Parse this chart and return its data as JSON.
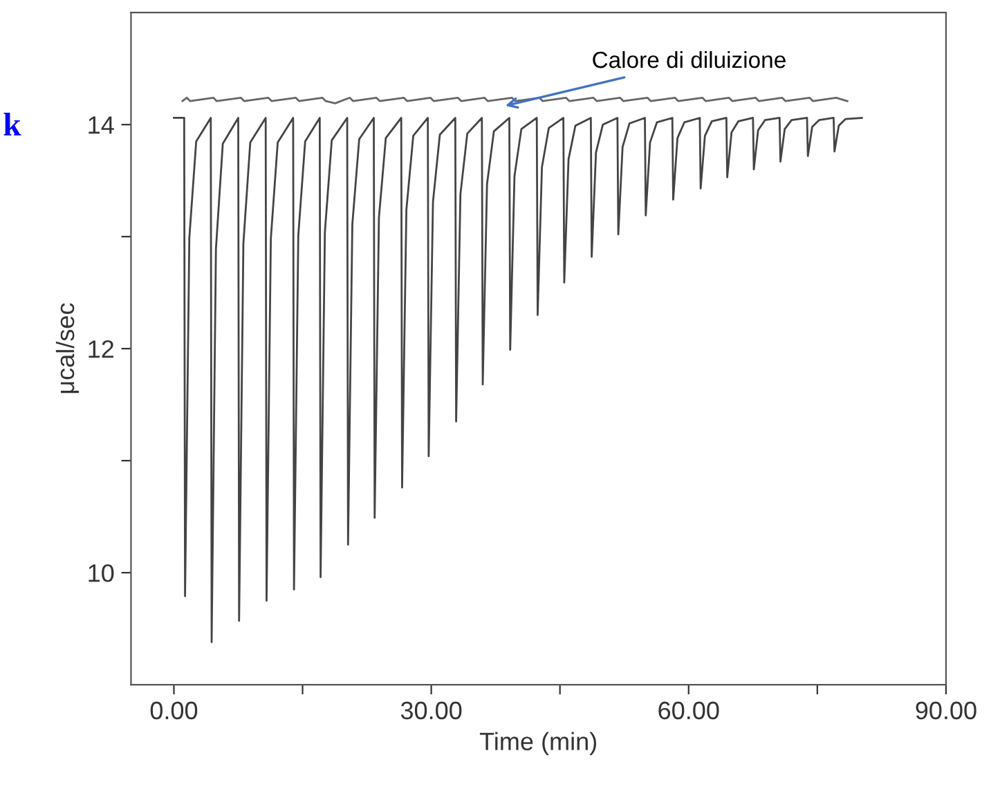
{
  "chart_data": {
    "type": "line",
    "xlabel": "Time (min)",
    "ylabel": "μcal/sec",
    "xlim": [
      -5,
      90
    ],
    "ylim": [
      9,
      15
    ],
    "xticks": [
      {
        "value": 0,
        "label": "0.00"
      },
      {
        "value": 15,
        "label": null
      },
      {
        "value": 30,
        "label": "30.00"
      },
      {
        "value": 45,
        "label": null
      },
      {
        "value": 60,
        "label": "60.00"
      },
      {
        "value": 75,
        "label": null
      },
      {
        "value": 90,
        "label": "90.00"
      }
    ],
    "yticks": [
      10,
      {
        "value": 11,
        "label": null
      },
      12,
      {
        "value": 13,
        "label": null
      },
      14
    ],
    "grid": false,
    "legend": false,
    "marker": "none",
    "line_style": "solid",
    "annotations": [
      "k",
      {
        "text": "Calore di diluizione",
        "x": 38.2,
        "y": 14.16
      }
    ],
    "series": [
      {
        "color": "#666666",
        "x": [
          1.0,
          1.5,
          1.9,
          4.6,
          5.0,
          7.8,
          8.2,
          11.0,
          11.4,
          14.2,
          14.6,
          17.3,
          17.7,
          18.8,
          20.5,
          20.9,
          23.6,
          24.0,
          26.8,
          27.2,
          29.9,
          30.3,
          33.1,
          33.5,
          36.2,
          36.6,
          39.4,
          39.8,
          42.6,
          43.0,
          45.7,
          46.1,
          48.9,
          49.3,
          52.0,
          52.4,
          55.2,
          55.6,
          58.4,
          58.8,
          61.6,
          62.0,
          64.7,
          65.1,
          67.8,
          68.2,
          70.9,
          71.3,
          74.1,
          74.5,
          77.2,
          78.5
        ],
        "values": [
          14.21,
          14.24,
          14.21,
          14.24,
          14.21,
          14.24,
          14.21,
          14.24,
          14.21,
          14.24,
          14.21,
          14.24,
          14.21,
          14.19,
          14.24,
          14.21,
          14.24,
          14.21,
          14.24,
          14.21,
          14.24,
          14.21,
          14.24,
          14.21,
          14.24,
          14.21,
          14.24,
          14.21,
          14.24,
          14.21,
          14.24,
          14.21,
          14.24,
          14.21,
          14.24,
          14.21,
          14.24,
          14.21,
          14.24,
          14.21,
          14.24,
          14.21,
          14.24,
          14.21,
          14.24,
          14.21,
          14.24,
          14.21,
          14.24,
          14.21,
          14.24,
          14.21
        ]
      },
      {
        "color": "#444444",
        "x": [
          0.0,
          1.2,
          1.3,
          1.8,
          2.6,
          4.3,
          4.4,
          4.9,
          5.7,
          7.5,
          7.6,
          8.1,
          8.9,
          10.7,
          10.8,
          11.3,
          12.1,
          13.9,
          14.0,
          14.5,
          15.3,
          17.0,
          17.1,
          17.6,
          18.4,
          20.2,
          20.3,
          20.8,
          21.6,
          23.3,
          23.4,
          23.9,
          24.7,
          26.5,
          26.6,
          27.1,
          27.9,
          29.6,
          29.7,
          30.2,
          31.0,
          32.8,
          32.9,
          33.4,
          34.2,
          35.9,
          36.0,
          36.5,
          37.3,
          39.1,
          39.2,
          39.7,
          40.5,
          42.3,
          42.4,
          42.9,
          43.7,
          45.4,
          45.5,
          46.0,
          46.8,
          48.6,
          48.7,
          49.2,
          50.0,
          51.7,
          51.8,
          52.3,
          53.1,
          54.9,
          55.0,
          55.5,
          56.3,
          58.1,
          58.2,
          58.7,
          59.5,
          61.3,
          61.4,
          61.9,
          62.7,
          64.4,
          64.5,
          65.0,
          65.8,
          67.5,
          67.6,
          68.1,
          68.9,
          70.6,
          70.7,
          71.2,
          72.0,
          73.8,
          73.9,
          74.4,
          75.2,
          76.9,
          77.0,
          77.5,
          78.3,
          80.2
        ],
        "values": [
          14.06,
          14.06,
          9.79,
          12.99,
          13.85,
          14.06,
          9.38,
          12.89,
          13.83,
          14.06,
          9.57,
          12.94,
          13.84,
          14.06,
          9.75,
          12.98,
          13.84,
          14.06,
          9.85,
          13.01,
          13.85,
          14.06,
          9.96,
          13.04,
          13.86,
          14.06,
          10.25,
          13.11,
          13.87,
          14.06,
          10.49,
          13.17,
          13.88,
          14.06,
          10.76,
          13.24,
          13.9,
          14.06,
          11.04,
          13.31,
          13.91,
          14.06,
          11.35,
          13.38,
          13.92,
          14.06,
          11.68,
          13.47,
          13.94,
          14.06,
          11.99,
          13.54,
          13.96,
          14.06,
          12.3,
          13.62,
          13.97,
          14.06,
          12.59,
          13.69,
          13.99,
          14.06,
          12.82,
          13.75,
          14.0,
          14.06,
          13.02,
          13.8,
          14.01,
          14.06,
          13.19,
          13.84,
          14.02,
          14.06,
          13.33,
          13.88,
          14.02,
          14.06,
          13.43,
          13.9,
          14.03,
          14.06,
          13.53,
          13.93,
          14.03,
          14.06,
          13.6,
          13.95,
          14.04,
          14.06,
          13.67,
          13.96,
          14.04,
          14.06,
          13.72,
          13.98,
          14.04,
          14.06,
          13.76,
          13.99,
          14.05,
          14.06
        ]
      }
    ]
  }
}
